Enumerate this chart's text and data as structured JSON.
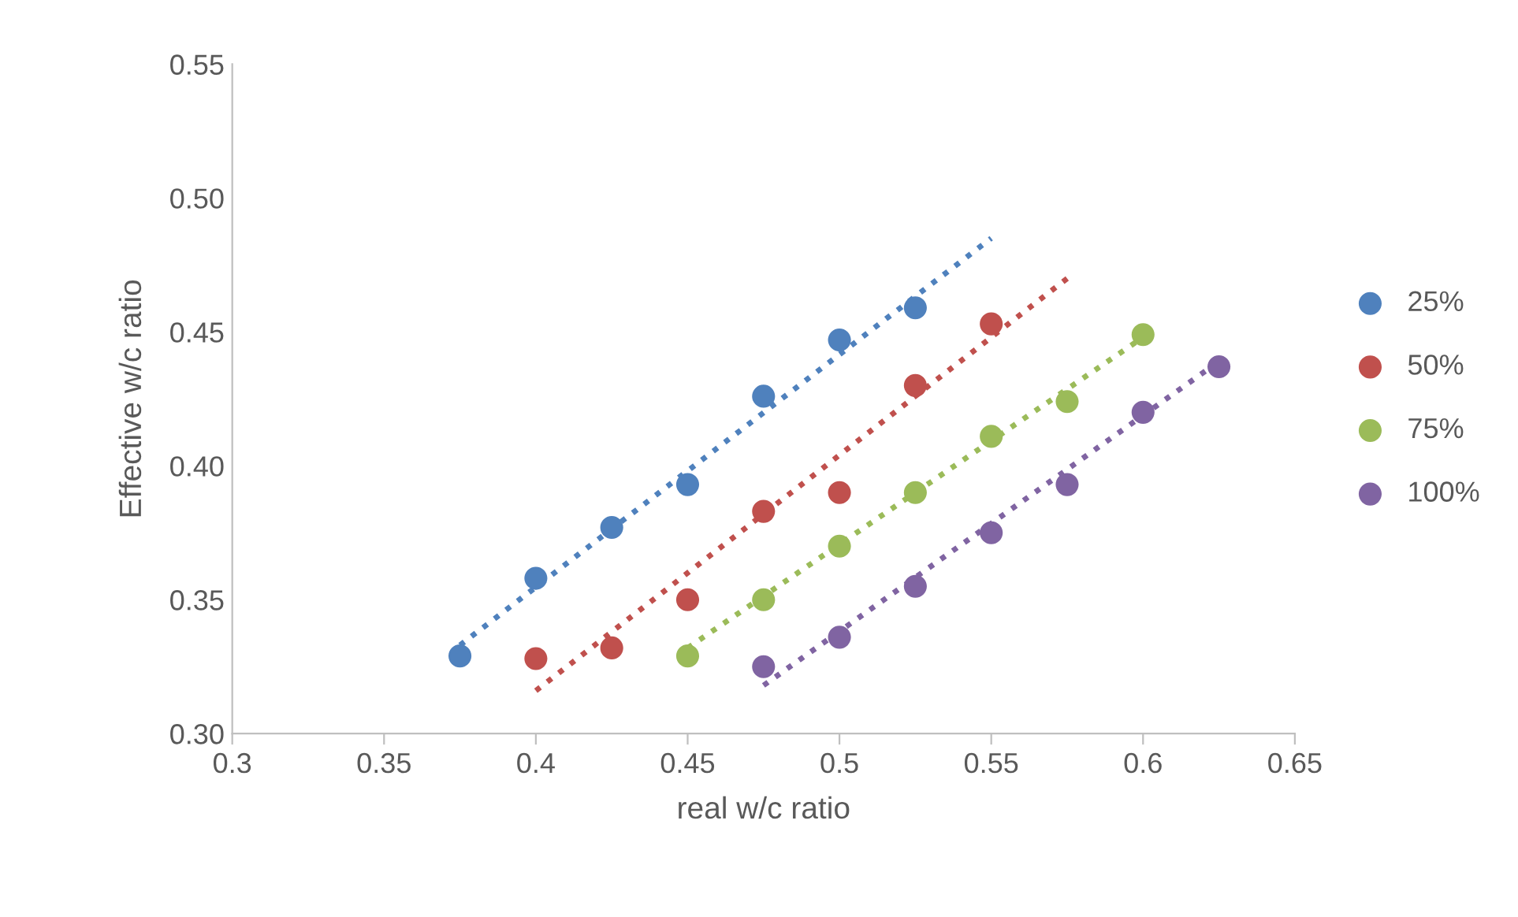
{
  "chart_data": {
    "type": "scatter",
    "xlabel": "real w/c ratio",
    "ylabel": "Effective w/c ratio",
    "xlim": [
      0.3,
      0.65
    ],
    "xticks": [
      0.3,
      0.35,
      0.4,
      0.45,
      0.5,
      0.55,
      0.6,
      0.65
    ],
    "ylim": [
      0.3,
      0.55
    ],
    "yticks": [
      {
        "value": 0.3,
        "label": "0.30"
      },
      {
        "value": 0.35,
        "label": "0.35"
      },
      {
        "value": 0.4,
        "label": "0.40"
      },
      {
        "value": 0.45,
        "label": "0.45"
      },
      {
        "value": 0.5,
        "label": "0.50"
      },
      {
        "value": 0.55,
        "label": "0.55"
      }
    ],
    "grid": false,
    "legend": "right",
    "marker": "circle",
    "series": [
      {
        "name": "25%",
        "color": "#4f81bd",
        "x": [
          0.375,
          0.4,
          0.425,
          0.45,
          0.475,
          0.5,
          0.525
        ],
        "values": [
          0.329,
          0.358,
          0.377,
          0.393,
          0.426,
          0.447,
          0.459
        ]
      },
      {
        "name": "50%",
        "color": "#c0504d",
        "x": [
          0.4,
          0.425,
          0.45,
          0.475,
          0.5,
          0.525,
          0.55
        ],
        "values": [
          0.328,
          0.332,
          0.35,
          0.383,
          0.39,
          0.43,
          0.453
        ]
      },
      {
        "name": "75%",
        "color": "#9bbb59",
        "x": [
          0.45,
          0.475,
          0.5,
          0.525,
          0.55,
          0.575,
          0.6
        ],
        "values": [
          0.329,
          0.35,
          0.37,
          0.39,
          0.411,
          0.424,
          0.449
        ]
      },
      {
        "name": "100%",
        "color": "#8064a2",
        "x": [
          0.475,
          0.5,
          0.525,
          0.55,
          0.575,
          0.6,
          0.625
        ],
        "values": [
          0.325,
          0.336,
          0.355,
          0.375,
          0.393,
          0.42,
          0.437
        ]
      },
      {
        "type": "line",
        "line_style": "dotted",
        "marker": "none",
        "color": "#4f81bd",
        "x": [
          0.375,
          0.55
        ],
        "values": [
          0.333,
          0.485
        ]
      },
      {
        "type": "line",
        "line_style": "dotted",
        "marker": "none",
        "color": "#c0504d",
        "x": [
          0.4,
          0.575
        ],
        "values": [
          0.316,
          0.47
        ]
      },
      {
        "type": "line",
        "line_style": "dotted",
        "marker": "none",
        "color": "#9bbb59",
        "x": [
          0.45,
          0.6
        ],
        "values": [
          0.332,
          0.448
        ]
      },
      {
        "type": "line",
        "line_style": "dotted",
        "marker": "none",
        "color": "#8064a2",
        "x": [
          0.475,
          0.625
        ],
        "values": [
          0.318,
          0.439
        ]
      }
    ]
  }
}
